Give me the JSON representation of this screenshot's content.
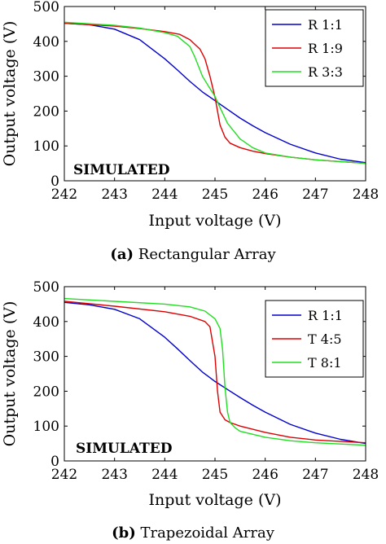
{
  "chart_data": [
    {
      "type": "line",
      "caption_letter": "(a)",
      "caption_text": "Rectangular Array",
      "annotation": "SIMULATED",
      "xlabel": "Input voltage (V)",
      "ylabel": "Output voltage (V)",
      "xlim": [
        242,
        248
      ],
      "ylim": [
        0,
        500
      ],
      "xticks": [
        "242",
        "243",
        "244",
        "245",
        "246",
        "247",
        "248"
      ],
      "yticks": [
        "0",
        "100",
        "200",
        "300",
        "400",
        "500"
      ],
      "legend_position": "top-right",
      "series": [
        {
          "name": "R 1:1",
          "color": "#0000cc",
          "x": [
            242,
            242.5,
            243,
            243.5,
            244,
            244.25,
            244.5,
            244.75,
            245,
            245.25,
            245.5,
            245.75,
            246,
            246.5,
            247,
            247.5,
            248
          ],
          "y": [
            452,
            448,
            435,
            405,
            350,
            318,
            285,
            255,
            230,
            205,
            180,
            158,
            138,
            105,
            80,
            62,
            52
          ]
        },
        {
          "name": "R 1:9",
          "color": "#dd0000",
          "x": [
            242,
            243,
            243.5,
            244,
            244.3,
            244.5,
            244.7,
            244.8,
            244.9,
            245,
            245.1,
            245.2,
            245.3,
            245.5,
            245.75,
            246,
            246.5,
            247,
            248
          ],
          "y": [
            452,
            444,
            437,
            428,
            420,
            405,
            378,
            350,
            300,
            240,
            160,
            125,
            108,
            95,
            85,
            78,
            68,
            60,
            50
          ]
        },
        {
          "name": "R 3:3",
          "color": "#22dd22",
          "x": [
            242,
            243,
            243.5,
            244,
            244.25,
            244.5,
            244.6,
            244.75,
            244.9,
            245,
            245.1,
            245.25,
            245.5,
            245.75,
            246,
            246.5,
            247,
            248
          ],
          "y": [
            455,
            446,
            438,
            425,
            415,
            385,
            355,
            300,
            265,
            242,
            210,
            165,
            120,
            95,
            80,
            68,
            60,
            50
          ]
        }
      ]
    },
    {
      "type": "line",
      "caption_letter": "(b)",
      "caption_text": "Trapezoidal Array",
      "annotation": "SIMULATED",
      "xlabel": "Input voltage (V)",
      "ylabel": "Output voltage (V)",
      "xlim": [
        242,
        248
      ],
      "ylim": [
        0,
        500
      ],
      "xticks": [
        "242",
        "243",
        "244",
        "245",
        "246",
        "247",
        "248"
      ],
      "yticks": [
        "0",
        "100",
        "200",
        "300",
        "400",
        "500"
      ],
      "legend_position": "top-right",
      "series": [
        {
          "name": "R 1:1",
          "color": "#0000cc",
          "x": [
            242,
            242.5,
            243,
            243.5,
            244,
            244.25,
            244.5,
            244.75,
            245,
            245.25,
            245.5,
            245.75,
            246,
            246.5,
            247,
            247.5,
            248
          ],
          "y": [
            455,
            448,
            435,
            408,
            355,
            322,
            288,
            255,
            228,
            205,
            182,
            160,
            140,
            105,
            80,
            62,
            50
          ]
        },
        {
          "name": "T 4:5",
          "color": "#dd0000",
          "x": [
            242,
            243,
            244,
            244.5,
            244.8,
            244.9,
            245,
            245.05,
            245.1,
            245.2,
            245.3,
            245.5,
            246,
            246.5,
            247,
            248
          ],
          "y": [
            458,
            444,
            428,
            415,
            400,
            385,
            300,
            200,
            140,
            118,
            110,
            100,
            82,
            68,
            60,
            52
          ]
        },
        {
          "name": "T 8:1",
          "color": "#22dd22",
          "x": [
            242,
            243,
            244,
            244.5,
            244.8,
            245,
            245.1,
            245.15,
            245.2,
            245.25,
            245.3,
            245.4,
            245.5,
            246,
            246.5,
            247,
            248
          ],
          "y": [
            466,
            458,
            450,
            442,
            430,
            408,
            380,
            320,
            210,
            140,
            110,
            95,
            85,
            68,
            58,
            52,
            45
          ]
        }
      ]
    }
  ]
}
